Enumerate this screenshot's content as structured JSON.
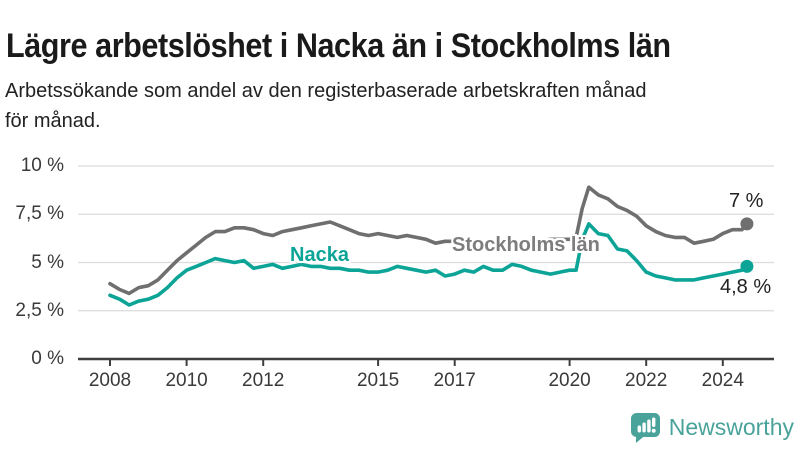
{
  "header": {
    "title": "Lägre arbetslöshet i Nacka än i Stockholms län",
    "subtitle_lines": [
      "Arbetssökande som andel av den registerbaserade arbetskraften månad",
      "för månad."
    ]
  },
  "chart_data": {
    "type": "line",
    "x_unit": "decimal_year",
    "ylim": [
      0,
      10
    ],
    "xlim": [
      2007.2,
      2025.3
    ],
    "grid": "horizontal",
    "y_ticks": [
      {
        "value": 10,
        "label": "10 %"
      },
      {
        "value": 7.5,
        "label": "7,5 %"
      },
      {
        "value": 5,
        "label": "5 %"
      },
      {
        "value": 2.5,
        "label": "2,5 %"
      },
      {
        "value": 0,
        "label": "0 %"
      }
    ],
    "x_ticks": [
      {
        "value": 2008,
        "label": "2008"
      },
      {
        "value": 2010,
        "label": "2010"
      },
      {
        "value": 2012,
        "label": "2012"
      },
      {
        "value": 2015,
        "label": "2015"
      },
      {
        "value": 2017,
        "label": "2017"
      },
      {
        "value": 2020,
        "label": "2020"
      },
      {
        "value": 2022,
        "label": "2022"
      },
      {
        "value": 2024,
        "label": "2024"
      }
    ],
    "x": [
      2008,
      2008.25,
      2008.5,
      2008.75,
      2009,
      2009.25,
      2009.5,
      2009.75,
      2010,
      2010.25,
      2010.5,
      2010.75,
      2011,
      2011.25,
      2011.5,
      2011.75,
      2012,
      2012.25,
      2012.5,
      2012.75,
      2013,
      2013.25,
      2013.5,
      2013.75,
      2014,
      2014.25,
      2014.5,
      2014.75,
      2015,
      2015.25,
      2015.5,
      2015.75,
      2016,
      2016.25,
      2016.5,
      2016.75,
      2017,
      2017.25,
      2017.5,
      2017.75,
      2018,
      2018.25,
      2018.5,
      2018.75,
      2019,
      2019.25,
      2019.5,
      2019.75,
      2020,
      2020.17,
      2020.33,
      2020.5,
      2020.75,
      2021,
      2021.25,
      2021.5,
      2021.75,
      2022,
      2022.25,
      2022.5,
      2022.75,
      2023,
      2023.25,
      2023.5,
      2023.75,
      2024,
      2024.25,
      2024.5,
      2024.63
    ],
    "series": [
      {
        "name": "Stockholms län",
        "color": "#6f6f6f",
        "end_label": "7 %",
        "end_value": 7.0,
        "values": [
          3.9,
          3.6,
          3.4,
          3.7,
          3.8,
          4.1,
          4.6,
          5.1,
          5.5,
          5.9,
          6.3,
          6.6,
          6.6,
          6.8,
          6.8,
          6.7,
          6.5,
          6.4,
          6.6,
          6.7,
          6.8,
          6.9,
          7.0,
          7.1,
          6.9,
          6.7,
          6.5,
          6.4,
          6.5,
          6.4,
          6.3,
          6.4,
          6.3,
          6.2,
          6.0,
          6.1,
          6.1,
          6.0,
          6.1,
          6.1,
          6.0,
          6.1,
          6.1,
          6.0,
          6.1,
          6.1,
          6.2,
          6.2,
          6.2,
          6.3,
          7.8,
          8.9,
          8.5,
          8.3,
          7.9,
          7.7,
          7.4,
          6.9,
          6.6,
          6.4,
          6.3,
          6.3,
          6.0,
          6.1,
          6.2,
          6.5,
          6.7,
          6.7,
          7.0
        ]
      },
      {
        "name": "Nacka",
        "color": "#0ca496",
        "end_label": "4,8 %",
        "end_value": 4.8,
        "values": [
          3.3,
          3.1,
          2.8,
          3.0,
          3.1,
          3.3,
          3.7,
          4.2,
          4.6,
          4.8,
          5.0,
          5.2,
          5.1,
          5.0,
          5.1,
          4.7,
          4.8,
          4.9,
          4.7,
          4.8,
          4.9,
          4.8,
          4.8,
          4.7,
          4.7,
          4.6,
          4.6,
          4.5,
          4.5,
          4.6,
          4.8,
          4.7,
          4.6,
          4.5,
          4.6,
          4.3,
          4.4,
          4.6,
          4.5,
          4.8,
          4.6,
          4.6,
          4.9,
          4.8,
          4.6,
          4.5,
          4.4,
          4.5,
          4.6,
          4.6,
          6.2,
          7.0,
          6.5,
          6.4,
          5.7,
          5.6,
          5.1,
          4.5,
          4.3,
          4.2,
          4.1,
          4.1,
          4.1,
          4.2,
          4.3,
          4.4,
          4.5,
          4.6,
          4.8
        ]
      }
    ],
    "colors": {
      "gridline": "#dcdcdc",
      "axis": "#3f3f3f",
      "tick_text": "#3a3a3a"
    }
  },
  "branding": {
    "logo_text": "Newsworthy",
    "logo_color": "#4aa39b",
    "icon": "bar-chart-speech-bubble-icon"
  }
}
